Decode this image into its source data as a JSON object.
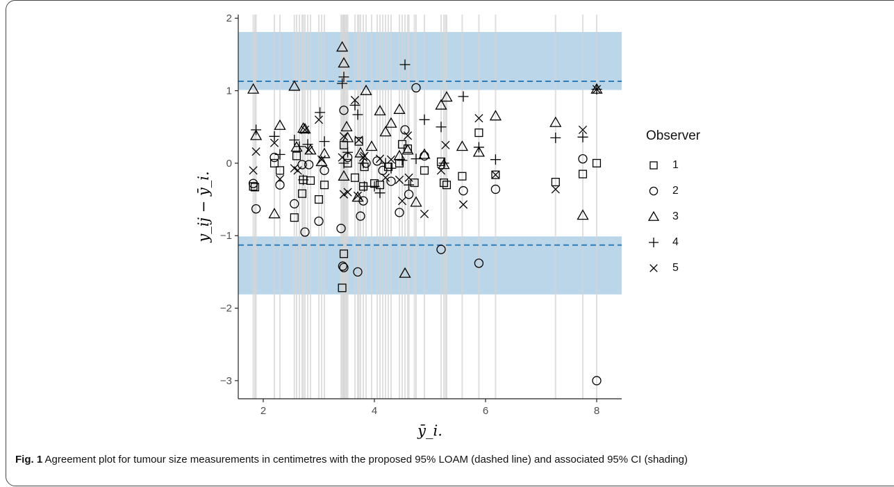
{
  "chart_data": {
    "type": "scatter",
    "title": "",
    "xlabel": "ȳ_i.",
    "ylabel": "y_ij − ȳ_i.",
    "xlim": [
      1.55,
      8.45
    ],
    "ylim": [
      -3.25,
      2.05
    ],
    "x_ticks": [
      "2",
      "4",
      "6",
      "8"
    ],
    "y_ticks": [
      "−3",
      "−2",
      "−1",
      "0",
      "1",
      "2"
    ],
    "x_tick_values": [
      2,
      4,
      6,
      8
    ],
    "y_tick_values": [
      -3,
      -2,
      -1,
      0,
      1,
      2
    ],
    "loam": {
      "upper": 1.13,
      "lower": -1.13,
      "style": "dashed"
    },
    "ci_shading": {
      "upper": [
        1.01,
        1.81
      ],
      "lower": [
        -1.81,
        -1.01
      ]
    },
    "legend": {
      "title": "Observer",
      "placement": "right",
      "entries": [
        "1",
        "2",
        "3",
        "4",
        "5"
      ]
    },
    "series": [
      {
        "name": "1",
        "marker": "square",
        "points": [
          [
            1.82,
            -0.32
          ],
          [
            1.85,
            -0.33
          ],
          [
            2.2,
            0.0
          ],
          [
            2.3,
            -0.1
          ],
          [
            2.56,
            -0.75
          ],
          [
            2.6,
            0.1
          ],
          [
            2.7,
            -0.42
          ],
          [
            2.72,
            -0.23
          ],
          [
            2.85,
            -0.24
          ],
          [
            3.0,
            -0.5
          ],
          [
            3.1,
            -0.3
          ],
          [
            3.42,
            -1.72
          ],
          [
            3.45,
            -1.25
          ],
          [
            3.45,
            0.25
          ],
          [
            3.52,
            0.0
          ],
          [
            3.65,
            -0.2
          ],
          [
            3.72,
            0.3
          ],
          [
            3.8,
            -0.32
          ],
          [
            3.82,
            -0.05
          ],
          [
            4.0,
            -0.28
          ],
          [
            4.1,
            -0.3
          ],
          [
            4.25,
            -0.05
          ],
          [
            4.45,
            0.0
          ],
          [
            4.5,
            0.26
          ],
          [
            4.6,
            0.2
          ],
          [
            4.72,
            -0.27
          ],
          [
            4.9,
            -0.1
          ],
          [
            5.2,
            0.02
          ],
          [
            5.25,
            -0.27
          ],
          [
            5.3,
            -0.3
          ],
          [
            5.58,
            -0.18
          ],
          [
            5.88,
            0.42
          ],
          [
            6.18,
            -0.16
          ],
          [
            7.26,
            -0.26
          ],
          [
            7.75,
            -0.15
          ],
          [
            8.0,
            0.0
          ]
        ]
      },
      {
        "name": "2",
        "marker": "circle",
        "points": [
          [
            1.82,
            -0.28
          ],
          [
            1.87,
            -0.63
          ],
          [
            2.2,
            0.08
          ],
          [
            2.3,
            -0.3
          ],
          [
            2.56,
            -0.56
          ],
          [
            2.7,
            -0.02
          ],
          [
            2.75,
            -0.95
          ],
          [
            2.82,
            -0.02
          ],
          [
            3.0,
            -0.8
          ],
          [
            3.1,
            -0.1
          ],
          [
            3.4,
            -0.9
          ],
          [
            3.43,
            -1.42
          ],
          [
            3.45,
            -1.44
          ],
          [
            3.45,
            0.73
          ],
          [
            3.52,
            0.08
          ],
          [
            3.7,
            -1.5
          ],
          [
            3.75,
            -0.73
          ],
          [
            3.8,
            -0.52
          ],
          [
            3.85,
            0.0
          ],
          [
            4.05,
            0.03
          ],
          [
            4.15,
            -0.1
          ],
          [
            4.3,
            -0.25
          ],
          [
            4.45,
            -0.68
          ],
          [
            4.55,
            0.46
          ],
          [
            4.62,
            -0.43
          ],
          [
            4.75,
            1.04
          ],
          [
            4.9,
            0.1
          ],
          [
            5.2,
            -1.19
          ],
          [
            5.6,
            -0.38
          ],
          [
            5.88,
            -1.38
          ],
          [
            6.18,
            -0.36
          ],
          [
            7.75,
            0.06
          ],
          [
            8.0,
            -3.0
          ]
        ]
      },
      {
        "name": "3",
        "marker": "triangle",
        "points": [
          [
            1.82,
            1.02
          ],
          [
            1.87,
            0.38
          ],
          [
            2.2,
            -0.7
          ],
          [
            2.3,
            0.52
          ],
          [
            2.56,
            1.06
          ],
          [
            2.6,
            0.22
          ],
          [
            2.72,
            0.48
          ],
          [
            2.75,
            0.47
          ],
          [
            2.85,
            0.18
          ],
          [
            3.05,
            0.02
          ],
          [
            3.1,
            0.13
          ],
          [
            3.42,
            1.6
          ],
          [
            3.45,
            1.38
          ],
          [
            3.45,
            -0.18
          ],
          [
            3.5,
            0.5
          ],
          [
            3.52,
            0.35
          ],
          [
            3.7,
            -0.47
          ],
          [
            3.75,
            0.14
          ],
          [
            3.85,
            1.0
          ],
          [
            3.95,
            0.23
          ],
          [
            4.1,
            0.72
          ],
          [
            4.2,
            0.43
          ],
          [
            4.3,
            0.55
          ],
          [
            4.45,
            0.1
          ],
          [
            4.45,
            0.74
          ],
          [
            4.55,
            -1.52
          ],
          [
            4.6,
            0.18
          ],
          [
            4.75,
            -0.54
          ],
          [
            4.9,
            0.12
          ],
          [
            5.2,
            0.8
          ],
          [
            5.25,
            -0.02
          ],
          [
            5.3,
            0.91
          ],
          [
            5.58,
            0.23
          ],
          [
            5.88,
            0.15
          ],
          [
            6.18,
            0.65
          ],
          [
            7.26,
            0.56
          ],
          [
            7.75,
            -0.72
          ],
          [
            8.0,
            1.02
          ]
        ]
      },
      {
        "name": "4",
        "marker": "plus",
        "points": [
          [
            1.87,
            0.46
          ],
          [
            2.2,
            0.37
          ],
          [
            2.3,
            0.12
          ],
          [
            2.56,
            0.32
          ],
          [
            2.65,
            0.23
          ],
          [
            2.72,
            -0.23
          ],
          [
            2.8,
            0.26
          ],
          [
            3.02,
            0.7
          ],
          [
            3.1,
            0.3
          ],
          [
            3.42,
            1.1
          ],
          [
            3.45,
            1.19
          ],
          [
            3.45,
            0.0
          ],
          [
            3.52,
            0.15
          ],
          [
            3.65,
            0.8
          ],
          [
            3.7,
            0.67
          ],
          [
            3.8,
            0.0
          ],
          [
            3.82,
            -0.32
          ],
          [
            4.0,
            -0.32
          ],
          [
            4.1,
            -0.41
          ],
          [
            4.2,
            0.0
          ],
          [
            4.3,
            -0.07
          ],
          [
            4.5,
            0.04
          ],
          [
            4.55,
            1.36
          ],
          [
            4.62,
            -0.3
          ],
          [
            4.75,
            0.06
          ],
          [
            4.9,
            0.6
          ],
          [
            5.2,
            0.5
          ],
          [
            5.25,
            0.0
          ],
          [
            5.6,
            0.92
          ],
          [
            5.88,
            0.22
          ],
          [
            6.18,
            0.05
          ],
          [
            7.26,
            0.35
          ],
          [
            7.75,
            0.36
          ],
          [
            8.0,
            1.02
          ]
        ]
      },
      {
        "name": "5",
        "marker": "x",
        "points": [
          [
            1.82,
            -0.1
          ],
          [
            1.87,
            0.16
          ],
          [
            2.2,
            0.28
          ],
          [
            2.3,
            -0.22
          ],
          [
            2.56,
            -0.07
          ],
          [
            2.62,
            -0.1
          ],
          [
            2.75,
            0.46
          ],
          [
            2.82,
            0.18
          ],
          [
            3.0,
            0.6
          ],
          [
            3.05,
            0.05
          ],
          [
            3.42,
            0.08
          ],
          [
            3.45,
            -0.43
          ],
          [
            3.45,
            0.37
          ],
          [
            3.52,
            -0.4
          ],
          [
            3.65,
            0.87
          ],
          [
            3.7,
            -0.45
          ],
          [
            3.72,
            0.32
          ],
          [
            3.8,
            0.08
          ],
          [
            3.82,
            0.1
          ],
          [
            4.1,
            0.06
          ],
          [
            4.2,
            -0.2
          ],
          [
            4.3,
            0.05
          ],
          [
            4.45,
            -0.23
          ],
          [
            4.5,
            -0.52
          ],
          [
            4.6,
            0.38
          ],
          [
            4.62,
            -0.2
          ],
          [
            4.9,
            -0.7
          ],
          [
            5.2,
            -0.1
          ],
          [
            5.28,
            0.25
          ],
          [
            5.6,
            -0.57
          ],
          [
            5.88,
            0.62
          ],
          [
            6.18,
            -0.16
          ],
          [
            7.26,
            -0.36
          ],
          [
            7.75,
            0.46
          ],
          [
            8.0,
            1.02
          ]
        ]
      }
    ],
    "vertical_reference_lines_x": [
      1.82,
      1.85,
      1.87,
      2.2,
      2.3,
      2.56,
      2.6,
      2.65,
      2.7,
      2.72,
      2.75,
      2.8,
      2.85,
      3.0,
      3.05,
      3.1,
      3.4,
      3.42,
      3.44,
      3.45,
      3.46,
      3.48,
      3.5,
      3.52,
      3.65,
      3.7,
      3.72,
      3.75,
      3.8,
      3.85,
      3.95,
      4.05,
      4.1,
      4.15,
      4.2,
      4.25,
      4.3,
      4.45,
      4.5,
      4.55,
      4.6,
      4.62,
      4.72,
      4.75,
      4.9,
      5.2,
      5.25,
      5.28,
      5.3,
      5.58,
      5.88,
      6.18,
      7.26,
      7.75,
      8.0
    ]
  },
  "caption": {
    "label": "Fig. 1",
    "text": " Agreement plot for tumour size measurements in centimetres with the proposed 95% LOAM (dashed line) and associated 95% CI (shading)"
  },
  "colors": {
    "shading": "#bcd6e9",
    "dashed_line": "#2f7bb6",
    "vertical_lines": "#d4d4d4",
    "markers": "#000000"
  }
}
